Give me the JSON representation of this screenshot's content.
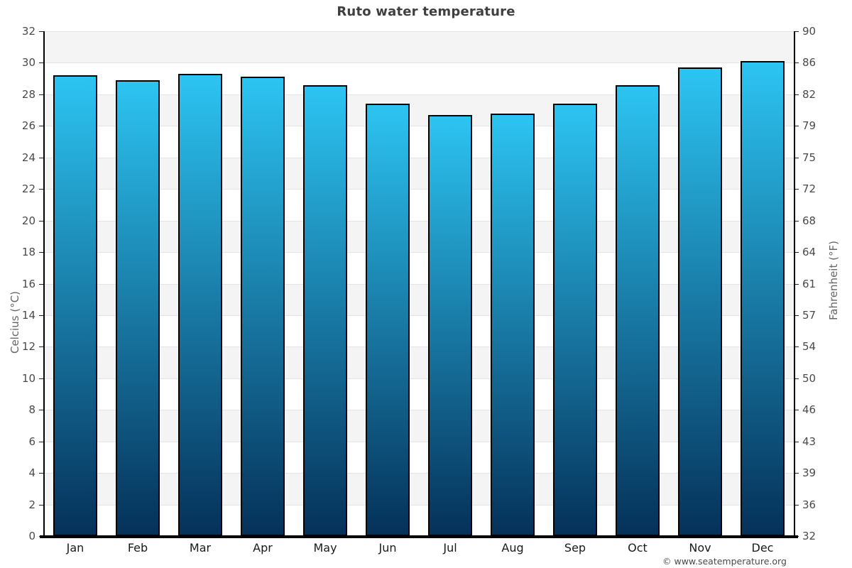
{
  "title": "Ruto water temperature",
  "copyright": "© www.seatemperature.org",
  "chart_data": {
    "type": "bar",
    "title": "Ruto water temperature",
    "categories": [
      "Jan",
      "Feb",
      "Mar",
      "Apr",
      "May",
      "Jun",
      "Jul",
      "Aug",
      "Sep",
      "Oct",
      "Nov",
      "Dec"
    ],
    "values": [
      29.2,
      28.9,
      29.3,
      29.1,
      28.6,
      27.4,
      26.7,
      26.8,
      27.4,
      28.6,
      29.7,
      30.1
    ],
    "unit": "°C",
    "xlabel": "",
    "ylabel_left": "Celcius (°C)",
    "ylabel_right": "Fahrenheit (°F)",
    "ylim": [
      0,
      32
    ],
    "yticks_celsius": [
      0,
      2,
      4,
      6,
      8,
      10,
      12,
      14,
      16,
      18,
      20,
      22,
      24,
      26,
      28,
      30,
      32
    ],
    "yticks_fahrenheit": [
      32,
      36,
      39,
      43,
      46,
      50,
      54,
      57,
      61,
      64,
      68,
      72,
      75,
      79,
      82,
      86,
      90
    ],
    "grid": "horizontal gridlines with alternating shaded bands",
    "legend": "none",
    "colors": {
      "bar_gradient_top": "#2DC4F2",
      "bar_gradient_bottom": "#053159",
      "bar_border": "#000000",
      "band_shade": "#f4f4f4",
      "gridline": "#e4e4e4",
      "axis_line": "#000000",
      "title_text": "#3f3f3f",
      "tick_text": "#4a4a4a"
    }
  }
}
